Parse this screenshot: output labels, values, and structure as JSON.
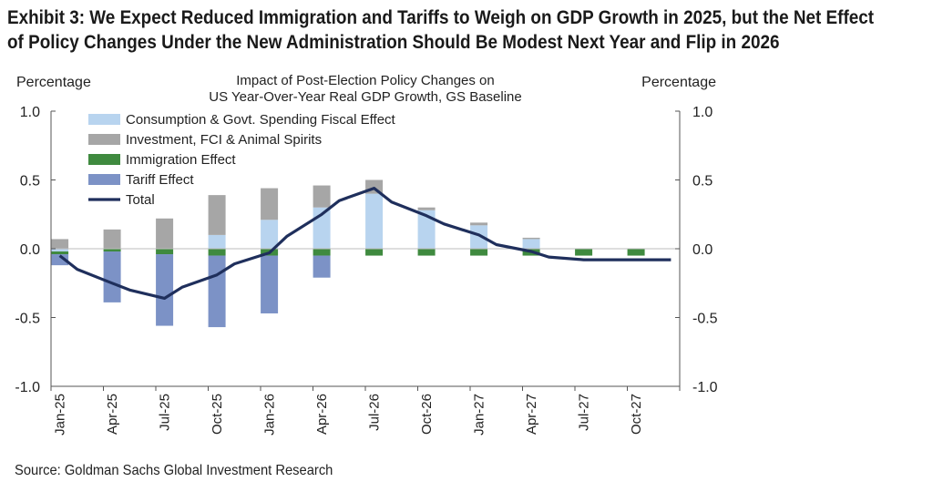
{
  "exhibit": {
    "title_line1": "Exhibit 3: We Expect Reduced Immigration and Tariffs to Weigh on GDP Growth in 2025, but the Net Effect",
    "title_line2": "of Policy Changes Under the New Administration Should Be Modest Next Year and Flip in 2026",
    "source": "Source: Goldman Sachs Global Investment Research"
  },
  "chart_data": {
    "type": "bar",
    "title_line1": "Impact of Post-Election Policy Changes on",
    "title_line2": "US Year-Over-Year  Real GDP Growth, GS Baseline",
    "ylabel_left": "Percentage",
    "ylabel_right": "Percentage",
    "ylim": [
      -1.0,
      1.0
    ],
    "yticks": [
      "1.0",
      "0.5",
      "0.0",
      "-0.5",
      "-1.0"
    ],
    "ytick_values": [
      1.0,
      0.5,
      0.0,
      -0.5,
      -1.0
    ],
    "grid": false,
    "legend_position": "top-left",
    "x": [
      "Jan-25",
      "Feb-25",
      "Mar-25",
      "Apr-25",
      "May-25",
      "Jun-25",
      "Jul-25",
      "Aug-25",
      "Sep-25",
      "Oct-25",
      "Nov-25",
      "Dec-25",
      "Jan-26",
      "Feb-26",
      "Mar-26",
      "Apr-26",
      "May-26",
      "Jun-26",
      "Jul-26",
      "Aug-26",
      "Sep-26",
      "Oct-26",
      "Nov-26",
      "Dec-26",
      "Jan-27",
      "Feb-27",
      "Mar-27",
      "Apr-27",
      "May-27",
      "Jun-27",
      "Jul-27",
      "Aug-27",
      "Sep-27",
      "Oct-27",
      "Nov-27",
      "Dec-27"
    ],
    "xtick_labels": [
      "Jan-25",
      "Apr-25",
      "Jul-25",
      "Oct-25",
      "Jan-26",
      "Apr-26",
      "Jul-26",
      "Oct-26",
      "Jan-27",
      "Apr-27",
      "Jul-27",
      "Oct-27"
    ],
    "bar_categories": [
      "Jan-25",
      "Apr-25",
      "Jul-25",
      "Oct-25",
      "Jan-26",
      "Apr-26",
      "Jul-26",
      "Oct-26",
      "Jan-27",
      "Apr-27",
      "Jul-27",
      "Oct-27"
    ],
    "bar_series": [
      {
        "name": "Consumption & Govt. Spending Fiscal Effect",
        "color": "#b8d4ef",
        "values": [
          -0.02,
          0.0,
          0.0,
          0.1,
          0.21,
          0.3,
          0.4,
          0.28,
          0.17,
          0.07,
          0.0,
          0.0
        ]
      },
      {
        "name": "Investment, FCI & Animal Spirits",
        "color": "#a6a6a6",
        "values": [
          0.07,
          0.14,
          0.22,
          0.29,
          0.23,
          0.16,
          0.1,
          0.02,
          0.02,
          0.01,
          0.0,
          0.0
        ]
      },
      {
        "name": "Immigration Effect",
        "color": "#3f8a3f",
        "values": [
          -0.02,
          -0.02,
          -0.04,
          -0.05,
          -0.05,
          -0.05,
          -0.05,
          -0.05,
          -0.05,
          -0.05,
          -0.05,
          -0.05
        ]
      },
      {
        "name": "Tariff Effect",
        "color": "#7c92c6",
        "values": [
          -0.08,
          -0.37,
          -0.52,
          -0.52,
          -0.42,
          -0.16,
          0.0,
          0.0,
          0.0,
          0.0,
          0.0,
          0.0
        ]
      }
    ],
    "line_series": {
      "name": "Total",
      "color": "#1f2f5c",
      "values": [
        -0.05,
        -0.15,
        -0.25,
        -0.3,
        -0.36,
        -0.28,
        -0.19,
        -0.11,
        -0.03,
        0.09,
        0.25,
        0.35,
        0.44,
        0.34,
        0.24,
        0.18,
        0.1,
        0.03,
        -0.02,
        -0.06,
        -0.08,
        -0.08,
        -0.08,
        -0.08
      ]
    },
    "line_x": [
      "Jan-25",
      "Feb-25",
      "Apr-25",
      "May-25",
      "Jul-25",
      "Aug-25",
      "Oct-25",
      "Nov-25",
      "Jan-26",
      "Feb-26",
      "Apr-26",
      "May-26",
      "Jul-26",
      "Aug-26",
      "Oct-26",
      "Nov-26",
      "Jan-27",
      "Feb-27",
      "Apr-27",
      "May-27",
      "Jul-27",
      "Aug-27",
      "Oct-27",
      "Dec-27"
    ]
  }
}
